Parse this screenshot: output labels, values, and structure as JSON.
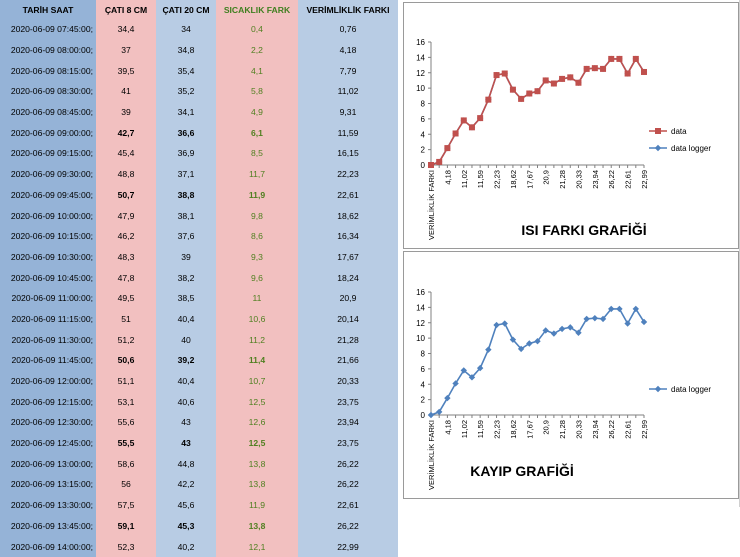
{
  "table": {
    "headers": [
      "TARİH SAAT",
      "ÇATI 8 CM",
      "ÇATI 20 CM",
      "SICAKLIK FARK",
      "VERİMLİKLİK FARKI"
    ],
    "rows": [
      {
        "time": "2020-06-09 07:45:00;",
        "c8": "34,4",
        "c20": "34",
        "fark": "0,4",
        "verim": "0,76",
        "bold": false
      },
      {
        "time": "2020-06-09 08:00:00;",
        "c8": "37",
        "c20": "34,8",
        "fark": "2,2",
        "verim": "4,18",
        "bold": false
      },
      {
        "time": "2020-06-09 08:15:00;",
        "c8": "39,5",
        "c20": "35,4",
        "fark": "4,1",
        "verim": "7,79",
        "bold": false
      },
      {
        "time": "2020-06-09 08:30:00;",
        "c8": "41",
        "c20": "35,2",
        "fark": "5,8",
        "verim": "11,02",
        "bold": false
      },
      {
        "time": "2020-06-09 08:45:00;",
        "c8": "39",
        "c20": "34,1",
        "fark": "4,9",
        "verim": "9,31",
        "bold": false
      },
      {
        "time": "2020-06-09 09:00:00;",
        "c8": "42,7",
        "c20": "36,6",
        "fark": "6,1",
        "verim": "11,59",
        "bold": true
      },
      {
        "time": "2020-06-09 09:15:00;",
        "c8": "45,4",
        "c20": "36,9",
        "fark": "8,5",
        "verim": "16,15",
        "bold": false
      },
      {
        "time": "2020-06-09 09:30:00;",
        "c8": "48,8",
        "c20": "37,1",
        "fark": "11,7",
        "verim": "22,23",
        "bold": false
      },
      {
        "time": "2020-06-09 09:45:00;",
        "c8": "50,7",
        "c20": "38,8",
        "fark": "11,9",
        "verim": "22,61",
        "bold": true
      },
      {
        "time": "2020-06-09 10:00:00;",
        "c8": "47,9",
        "c20": "38,1",
        "fark": "9,8",
        "verim": "18,62",
        "bold": false
      },
      {
        "time": "2020-06-09 10:15:00;",
        "c8": "46,2",
        "c20": "37,6",
        "fark": "8,6",
        "verim": "16,34",
        "bold": false
      },
      {
        "time": "2020-06-09 10:30:00;",
        "c8": "48,3",
        "c20": "39",
        "fark": "9,3",
        "verim": "17,67",
        "bold": false
      },
      {
        "time": "2020-06-09 10:45:00;",
        "c8": "47,8",
        "c20": "38,2",
        "fark": "9,6",
        "verim": "18,24",
        "bold": false
      },
      {
        "time": "2020-06-09 11:00:00;",
        "c8": "49,5",
        "c20": "38,5",
        "fark": "11",
        "verim": "20,9",
        "bold": false
      },
      {
        "time": "2020-06-09 11:15:00;",
        "c8": "51",
        "c20": "40,4",
        "fark": "10,6",
        "verim": "20,14",
        "bold": false
      },
      {
        "time": "2020-06-09 11:30:00;",
        "c8": "51,2",
        "c20": "40",
        "fark": "11,2",
        "verim": "21,28",
        "bold": false
      },
      {
        "time": "2020-06-09 11:45:00;",
        "c8": "50,6",
        "c20": "39,2",
        "fark": "11,4",
        "verim": "21,66",
        "bold": true
      },
      {
        "time": "2020-06-09 12:00:00;",
        "c8": "51,1",
        "c20": "40,4",
        "fark": "10,7",
        "verim": "20,33",
        "bold": false
      },
      {
        "time": "2020-06-09 12:15:00;",
        "c8": "53,1",
        "c20": "40,6",
        "fark": "12,5",
        "verim": "23,75",
        "bold": false
      },
      {
        "time": "2020-06-09 12:30:00;",
        "c8": "55,6",
        "c20": "43",
        "fark": "12,6",
        "verim": "23,94",
        "bold": false
      },
      {
        "time": "2020-06-09 12:45:00;",
        "c8": "55,5",
        "c20": "43",
        "fark": "12,5",
        "verim": "23,75",
        "bold": true
      },
      {
        "time": "2020-06-09 13:00:00;",
        "c8": "58,6",
        "c20": "44,8",
        "fark": "13,8",
        "verim": "26,22",
        "bold": false
      },
      {
        "time": "2020-06-09 13:15:00;",
        "c8": "56",
        "c20": "42,2",
        "fark": "13,8",
        "verim": "26,22",
        "bold": false
      },
      {
        "time": "2020-06-09 13:30:00;",
        "c8": "57,5",
        "c20": "45,6",
        "fark": "11,9",
        "verim": "22,61",
        "bold": false
      },
      {
        "time": "2020-06-09 13:45:00;",
        "c8": "59,1",
        "c20": "45,3",
        "fark": "13,8",
        "verim": "26,22",
        "bold": true
      },
      {
        "time": "2020-06-09 14:00:00;",
        "c8": "52,3",
        "c20": "40,2",
        "fark": "12,1",
        "verim": "22,99",
        "bold": false
      }
    ]
  },
  "chart_data": [
    {
      "type": "line",
      "title": "ISI FARKI GRAFİĞİ",
      "xlabel": "",
      "ylabel": "",
      "ylim": [
        0,
        16
      ],
      "yticks": [
        "0",
        "2",
        "4",
        "6",
        "8",
        "10",
        "12",
        "14",
        "16"
      ],
      "x_tick_labels": [
        "VERİMLİKLİK FARKI",
        "4,18",
        "11,02",
        "11,59",
        "22,23",
        "18,62",
        "17,67",
        "20,9",
        "21,28",
        "20,33",
        "23,94",
        "26,22",
        "22,61",
        "22,99"
      ],
      "categories": [
        "VERİMLİKLİK FARKI",
        "0,76",
        "4,18",
        "7,79",
        "11,02",
        "9,31",
        "11,59",
        "16,15",
        "22,23",
        "22,61",
        "18,62",
        "16,34",
        "17,67",
        "18,24",
        "20,9",
        "20,14",
        "21,28",
        "21,66",
        "20,33",
        "23,75",
        "23,94",
        "23,75",
        "26,22",
        "26,22",
        "22,61",
        "26,22",
        "22,99"
      ],
      "series": [
        {
          "name": "data",
          "color": "#c0504d",
          "marker": "square",
          "values": [
            0,
            0.4,
            2.2,
            4.1,
            5.8,
            4.9,
            6.1,
            8.5,
            11.7,
            11.9,
            9.8,
            8.6,
            9.3,
            9.6,
            11,
            10.6,
            11.2,
            11.4,
            10.7,
            12.5,
            12.6,
            12.5,
            13.8,
            13.8,
            11.9,
            13.8,
            12.1
          ]
        },
        {
          "name": "data logger",
          "color": "#4f81bd",
          "marker": "diamond",
          "values": [
            0,
            0.4,
            2.2,
            4.1,
            5.8,
            4.9,
            6.1,
            8.5,
            11.7,
            11.9,
            9.8,
            8.6,
            9.3,
            9.6,
            11,
            10.6,
            11.2,
            11.4,
            10.7,
            12.5,
            12.6,
            12.5,
            13.8,
            13.8,
            11.9,
            13.8,
            12.1
          ]
        }
      ],
      "legend": "right",
      "grid": false
    },
    {
      "type": "line",
      "title": "KAYIP GRAFİĞİ",
      "xlabel": "",
      "ylabel": "",
      "ylim": [
        0,
        16
      ],
      "yticks": [
        "0",
        "2",
        "4",
        "6",
        "8",
        "10",
        "12",
        "14",
        "16"
      ],
      "x_tick_labels": [
        "VERİMLİKLİK FARKI",
        "4,18",
        "11,02",
        "11,59",
        "22,23",
        "18,62",
        "17,67",
        "20,9",
        "21,28",
        "20,33",
        "23,94",
        "26,22",
        "22,61",
        "22,99"
      ],
      "categories": [
        "VERİMLİKLİK FARKI",
        "0,76",
        "4,18",
        "7,79",
        "11,02",
        "9,31",
        "11,59",
        "16,15",
        "22,23",
        "22,61",
        "18,62",
        "16,34",
        "17,67",
        "18,24",
        "20,9",
        "20,14",
        "21,28",
        "21,66",
        "20,33",
        "23,75",
        "23,94",
        "23,75",
        "26,22",
        "26,22",
        "22,61",
        "26,22",
        "22,99"
      ],
      "series": [
        {
          "name": "data logger",
          "color": "#4f81bd",
          "marker": "diamond",
          "values": [
            0,
            0.4,
            2.2,
            4.1,
            5.8,
            4.9,
            6.1,
            8.5,
            11.7,
            11.9,
            9.8,
            8.6,
            9.3,
            9.6,
            11,
            10.6,
            11.2,
            11.4,
            10.7,
            12.5,
            12.6,
            12.5,
            13.8,
            13.8,
            11.9,
            13.8,
            12.1
          ]
        }
      ],
      "legend": "right",
      "grid": false
    }
  ]
}
